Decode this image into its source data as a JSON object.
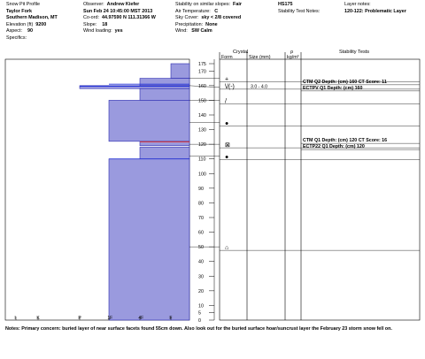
{
  "header": {
    "col1": {
      "title": "Snow Pit Profile",
      "location": "Taylor Fork",
      "region": "Southern Madison, MT",
      "elevation_label": "Elevation (ft)",
      "elevation_value": "9200",
      "aspect_label": "Aspect:",
      "aspect_value": "90",
      "specifics_label": "Specifics:"
    },
    "col2": {
      "observer_label": "Observer:",
      "observer_value": "Andrew Kiefer",
      "datetime": "Sun Feb 24 10:45:00 MST 2013",
      "coord_label": "Co-ord:",
      "coord_value": "44.97590 N 111.31366 W",
      "slope_label": "Slope:",
      "slope_value": "18",
      "wind_label": "Wind loading:",
      "wind_value": "yes"
    },
    "col3": {
      "stability_label": "Stability on similar slopes:",
      "stability_value": "Fair",
      "air_temp_label": "Air Temperature:",
      "air_temp_value": "C",
      "sky_label": "Sky Cover:",
      "sky_value": "sky < 2/8 covered",
      "precip_label": "Precipitation:",
      "precip_value": "None",
      "wind_label": "Wind:",
      "wind_value": "SW Calm"
    },
    "col4": {
      "id": "HS175",
      "stability_notes_label": "Stability Test Notes:"
    },
    "col5": {
      "layer_notes_label": "Layer notes:",
      "layer_notes_value": "120-122: Problematic Layer"
    }
  },
  "chart_data": {
    "type": "diagram",
    "name": "snow pit hardness profile",
    "hardness_axis": [
      "I",
      "K",
      "P",
      "1F",
      "4F",
      "F"
    ],
    "height_axis": {
      "ticks": [
        0,
        5,
        10,
        20,
        30,
        40,
        50,
        60,
        70,
        80,
        90,
        100,
        110,
        120,
        130,
        140,
        150,
        160,
        170,
        175
      ],
      "range": [
        0,
        175
      ]
    },
    "layers": [
      {
        "bottom": 165,
        "top": 175,
        "hardness": "F"
      },
      {
        "bottom": 160,
        "top": 165,
        "hardness": "4F"
      },
      {
        "bottom": 158,
        "top": 160,
        "hardness": "P",
        "line_color": "#1f2fd8"
      },
      {
        "bottom": 150,
        "top": 158,
        "hardness": "4F"
      },
      {
        "bottom": 122,
        "top": 150,
        "hardness": "1F"
      },
      {
        "bottom": 119,
        "top": 122,
        "hardness": "4F",
        "line_color": "#d83030"
      },
      {
        "bottom": 110,
        "top": 118,
        "hardness": "4F"
      },
      {
        "bottom": 0,
        "top": 110,
        "hardness": "1F"
      }
    ],
    "fill_color": "#9a9ade",
    "edge_color": "#2b2bb0",
    "extra_lines": [
      {
        "height": 161,
        "color": "#1f2fd8"
      },
      {
        "height": 110,
        "color": "#1f2fd8"
      }
    ],
    "crystal_columns": {
      "header": "Crystal",
      "form": "Form",
      "size": "Size (mm)"
    },
    "rho_column": {
      "symbol": "ρ",
      "unit": "kg/m³"
    },
    "stability_column": {
      "header": "Stability Tests"
    },
    "crystal_rows": [
      {
        "height": 165,
        "form_symbol": "+",
        "size": ""
      },
      {
        "height": 160,
        "form_symbol": "\\/(-)",
        "size": "3.0 - 4.0"
      },
      {
        "height": 150,
        "form_symbol": "/",
        "size": ""
      },
      {
        "height": 135,
        "form_symbol": "●",
        "size": ""
      },
      {
        "height": 120,
        "form_symbol": "⊠",
        "size": ""
      },
      {
        "height": 112,
        "form_symbol": "●",
        "size": ""
      },
      {
        "height": 50,
        "form_symbol": "⌂",
        "size": ""
      }
    ],
    "stability_tests": [
      {
        "height": 160,
        "text": "CTM Q2 Depth: (cm) 160 CT Score: 11"
      },
      {
        "height": 160,
        "text": "ECTPV Q1 Depth: (cm) 160"
      },
      {
        "height": 120,
        "text": "CTM Q1 Depth: (cm) 120 CT Score: 16"
      },
      {
        "height": 120,
        "text": "ECTP22 Q1 Depth: (cm) 120"
      }
    ]
  },
  "notes": {
    "label": "Notes:",
    "text": "Primary concern: buried layer of near surface facets found 55cm down.  Also look out for the buried surface hoar/suncrust layer the February 23 storm snow fell on."
  }
}
